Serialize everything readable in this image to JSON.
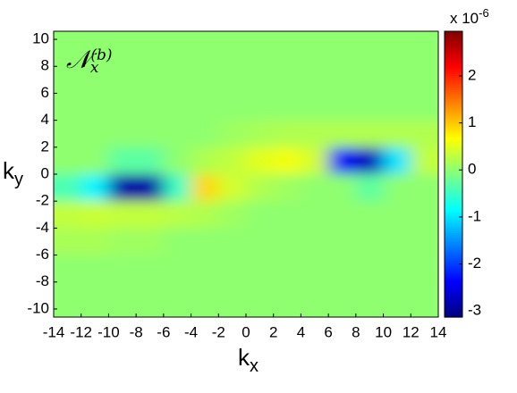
{
  "chart_data": {
    "type": "heatmap",
    "annotation": {
      "base": "𝒩",
      "sub": "x",
      "sup": "(b)"
    },
    "x_label": {
      "base": "k",
      "sub": "x"
    },
    "y_label": {
      "base": "k",
      "sub": "y"
    },
    "x": [
      -13,
      -11,
      -9,
      -7,
      -5,
      -3,
      -1,
      1,
      3,
      5,
      7,
      9,
      11,
      13
    ],
    "y": [
      9,
      7,
      5,
      3,
      1,
      -1,
      -3,
      -5,
      -7,
      -9
    ],
    "z": [
      [
        0,
        0,
        0,
        0,
        0,
        0,
        0,
        0,
        0,
        0,
        0,
        0,
        0,
        0
      ],
      [
        0,
        0,
        0,
        0,
        0,
        0,
        0,
        0,
        0,
        0,
        0,
        0,
        0,
        0
      ],
      [
        0,
        0,
        0,
        0,
        0,
        0,
        0,
        0,
        0,
        0,
        0,
        0,
        0,
        0
      ],
      [
        0,
        0,
        0,
        0,
        0,
        0,
        0.1,
        0.15,
        0.2,
        0.2,
        0.2,
        0.2,
        0.2,
        0.2
      ],
      [
        0,
        0,
        -0.3,
        -0.3,
        0,
        0.2,
        0.3,
        0.5,
        0.6,
        0.4,
        -2.4,
        -2.8,
        -1.0,
        0.3
      ],
      [
        -0.4,
        -0.9,
        -2.9,
        -2.9,
        -0.5,
        0.9,
        0.4,
        0.2,
        0.1,
        0,
        0,
        -0.3,
        0,
        0
      ],
      [
        0.3,
        0.35,
        0.3,
        0.3,
        0.25,
        0.2,
        0.1,
        0,
        0,
        0,
        0,
        0,
        0,
        0
      ],
      [
        0.15,
        0.15,
        0.1,
        0.1,
        0,
        0,
        0,
        0,
        0,
        0,
        0,
        0,
        0,
        0
      ],
      [
        0,
        0,
        0,
        0,
        0,
        0,
        0,
        0,
        0,
        0,
        0,
        0,
        0,
        0
      ],
      [
        0,
        0,
        0,
        0,
        0,
        0,
        0,
        0,
        0,
        0,
        0,
        0,
        0,
        0
      ]
    ],
    "xlim": [
      -14,
      14
    ],
    "ylim": [
      -10.6,
      10.6
    ],
    "xticks": [
      -14,
      -12,
      -10,
      -8,
      -6,
      -4,
      -2,
      0,
      2,
      4,
      6,
      8,
      10,
      12,
      14
    ],
    "yticks": [
      -10,
      -8,
      -6,
      -4,
      -2,
      0,
      2,
      4,
      6,
      8,
      10
    ],
    "colormap": "jet",
    "clim": [
      -3.13,
      2.95
    ],
    "colorbar_ticks": [
      -3,
      -2,
      -1,
      0,
      1,
      2
    ],
    "colorbar_label": {
      "base": "x 10",
      "sup": "-6"
    }
  }
}
